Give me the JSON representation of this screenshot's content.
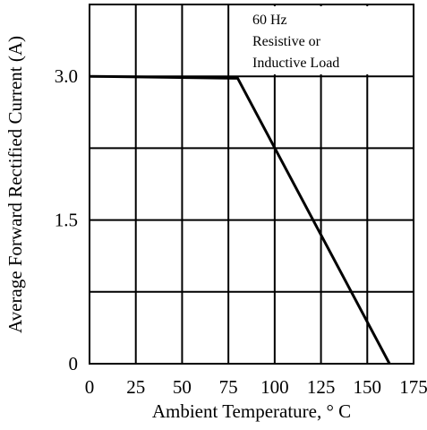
{
  "chart_data": {
    "type": "line",
    "xlabel": "Ambient Temperature, ° C",
    "ylabel": "Average Forward Rectified Current (A)",
    "xlim": [
      0,
      175
    ],
    "ylim": [
      0,
      3.75
    ],
    "x_ticks": [
      0,
      25,
      50,
      75,
      100,
      125,
      150,
      175
    ],
    "x_tick_labels": [
      "0",
      "25",
      "50",
      "75",
      "100",
      "125",
      "150",
      "175"
    ],
    "y_ticks": [
      0,
      1.5,
      3.0
    ],
    "y_tick_labels": [
      "0",
      "1.5",
      "3.0"
    ],
    "grid": true,
    "series": [
      {
        "x": [
          0,
          80,
          162
        ],
        "y": [
          3.0,
          2.98,
          0
        ]
      }
    ],
    "annotation": {
      "lines": [
        "60 Hz",
        "Resistive or",
        "Inductive Load"
      ]
    }
  }
}
